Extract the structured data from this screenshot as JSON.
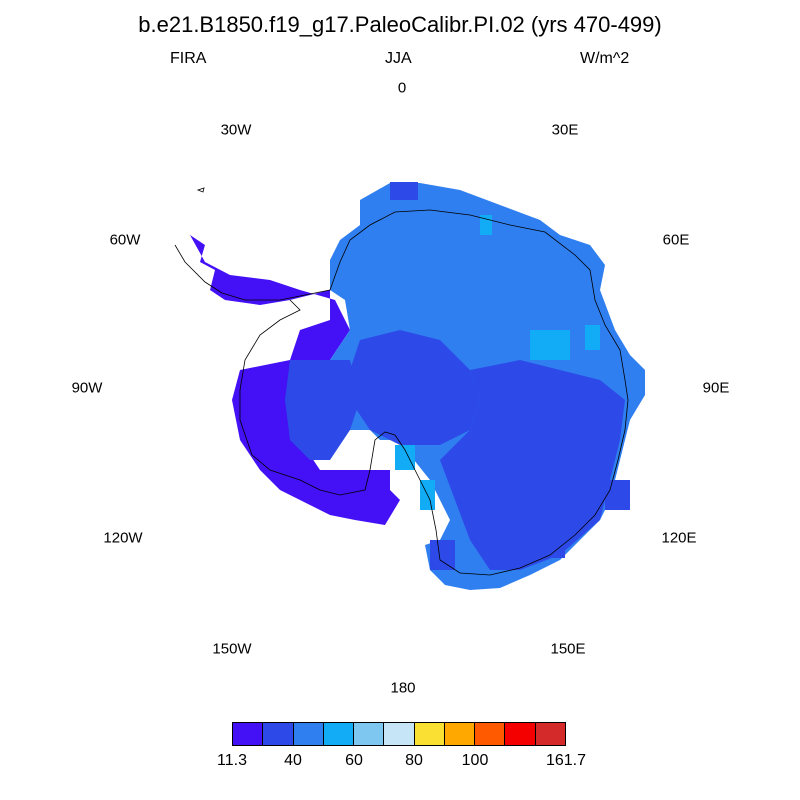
{
  "title": "b.e21.B1850.f19_g17.PaleoCalibr.PI.02 (yrs 470-499)",
  "subtitle": {
    "left": "FIRA",
    "center": "JJA",
    "right": "W/m^2"
  },
  "longitude_labels": [
    "0",
    "30E",
    "60E",
    "90E",
    "120E",
    "150E",
    "180",
    "150W",
    "120W",
    "90W",
    "60W",
    "30W"
  ],
  "colors": {
    "c1": "#4410f5",
    "c2": "#2d4ae8",
    "c3": "#2f7ff0",
    "c4": "#12abf5",
    "c5": "#7dc7f0",
    "c6": "#c6e6f7",
    "c7": "#f9e033",
    "c8": "#ffa800",
    "c9": "#ff5a00",
    "c10": "#f50000",
    "c11": "#d42a2a"
  },
  "colorbar": {
    "labels": [
      "11.3",
      "40",
      "60",
      "80",
      "100",
      "161.7"
    ],
    "colors": [
      "#4410f5",
      "#2d4ae8",
      "#2f7ff0",
      "#12abf5",
      "#7dc7f0",
      "#c6e6f7",
      "#f9e033",
      "#ffa800",
      "#ff5a00",
      "#f50000",
      "#d42a2a"
    ]
  }
}
